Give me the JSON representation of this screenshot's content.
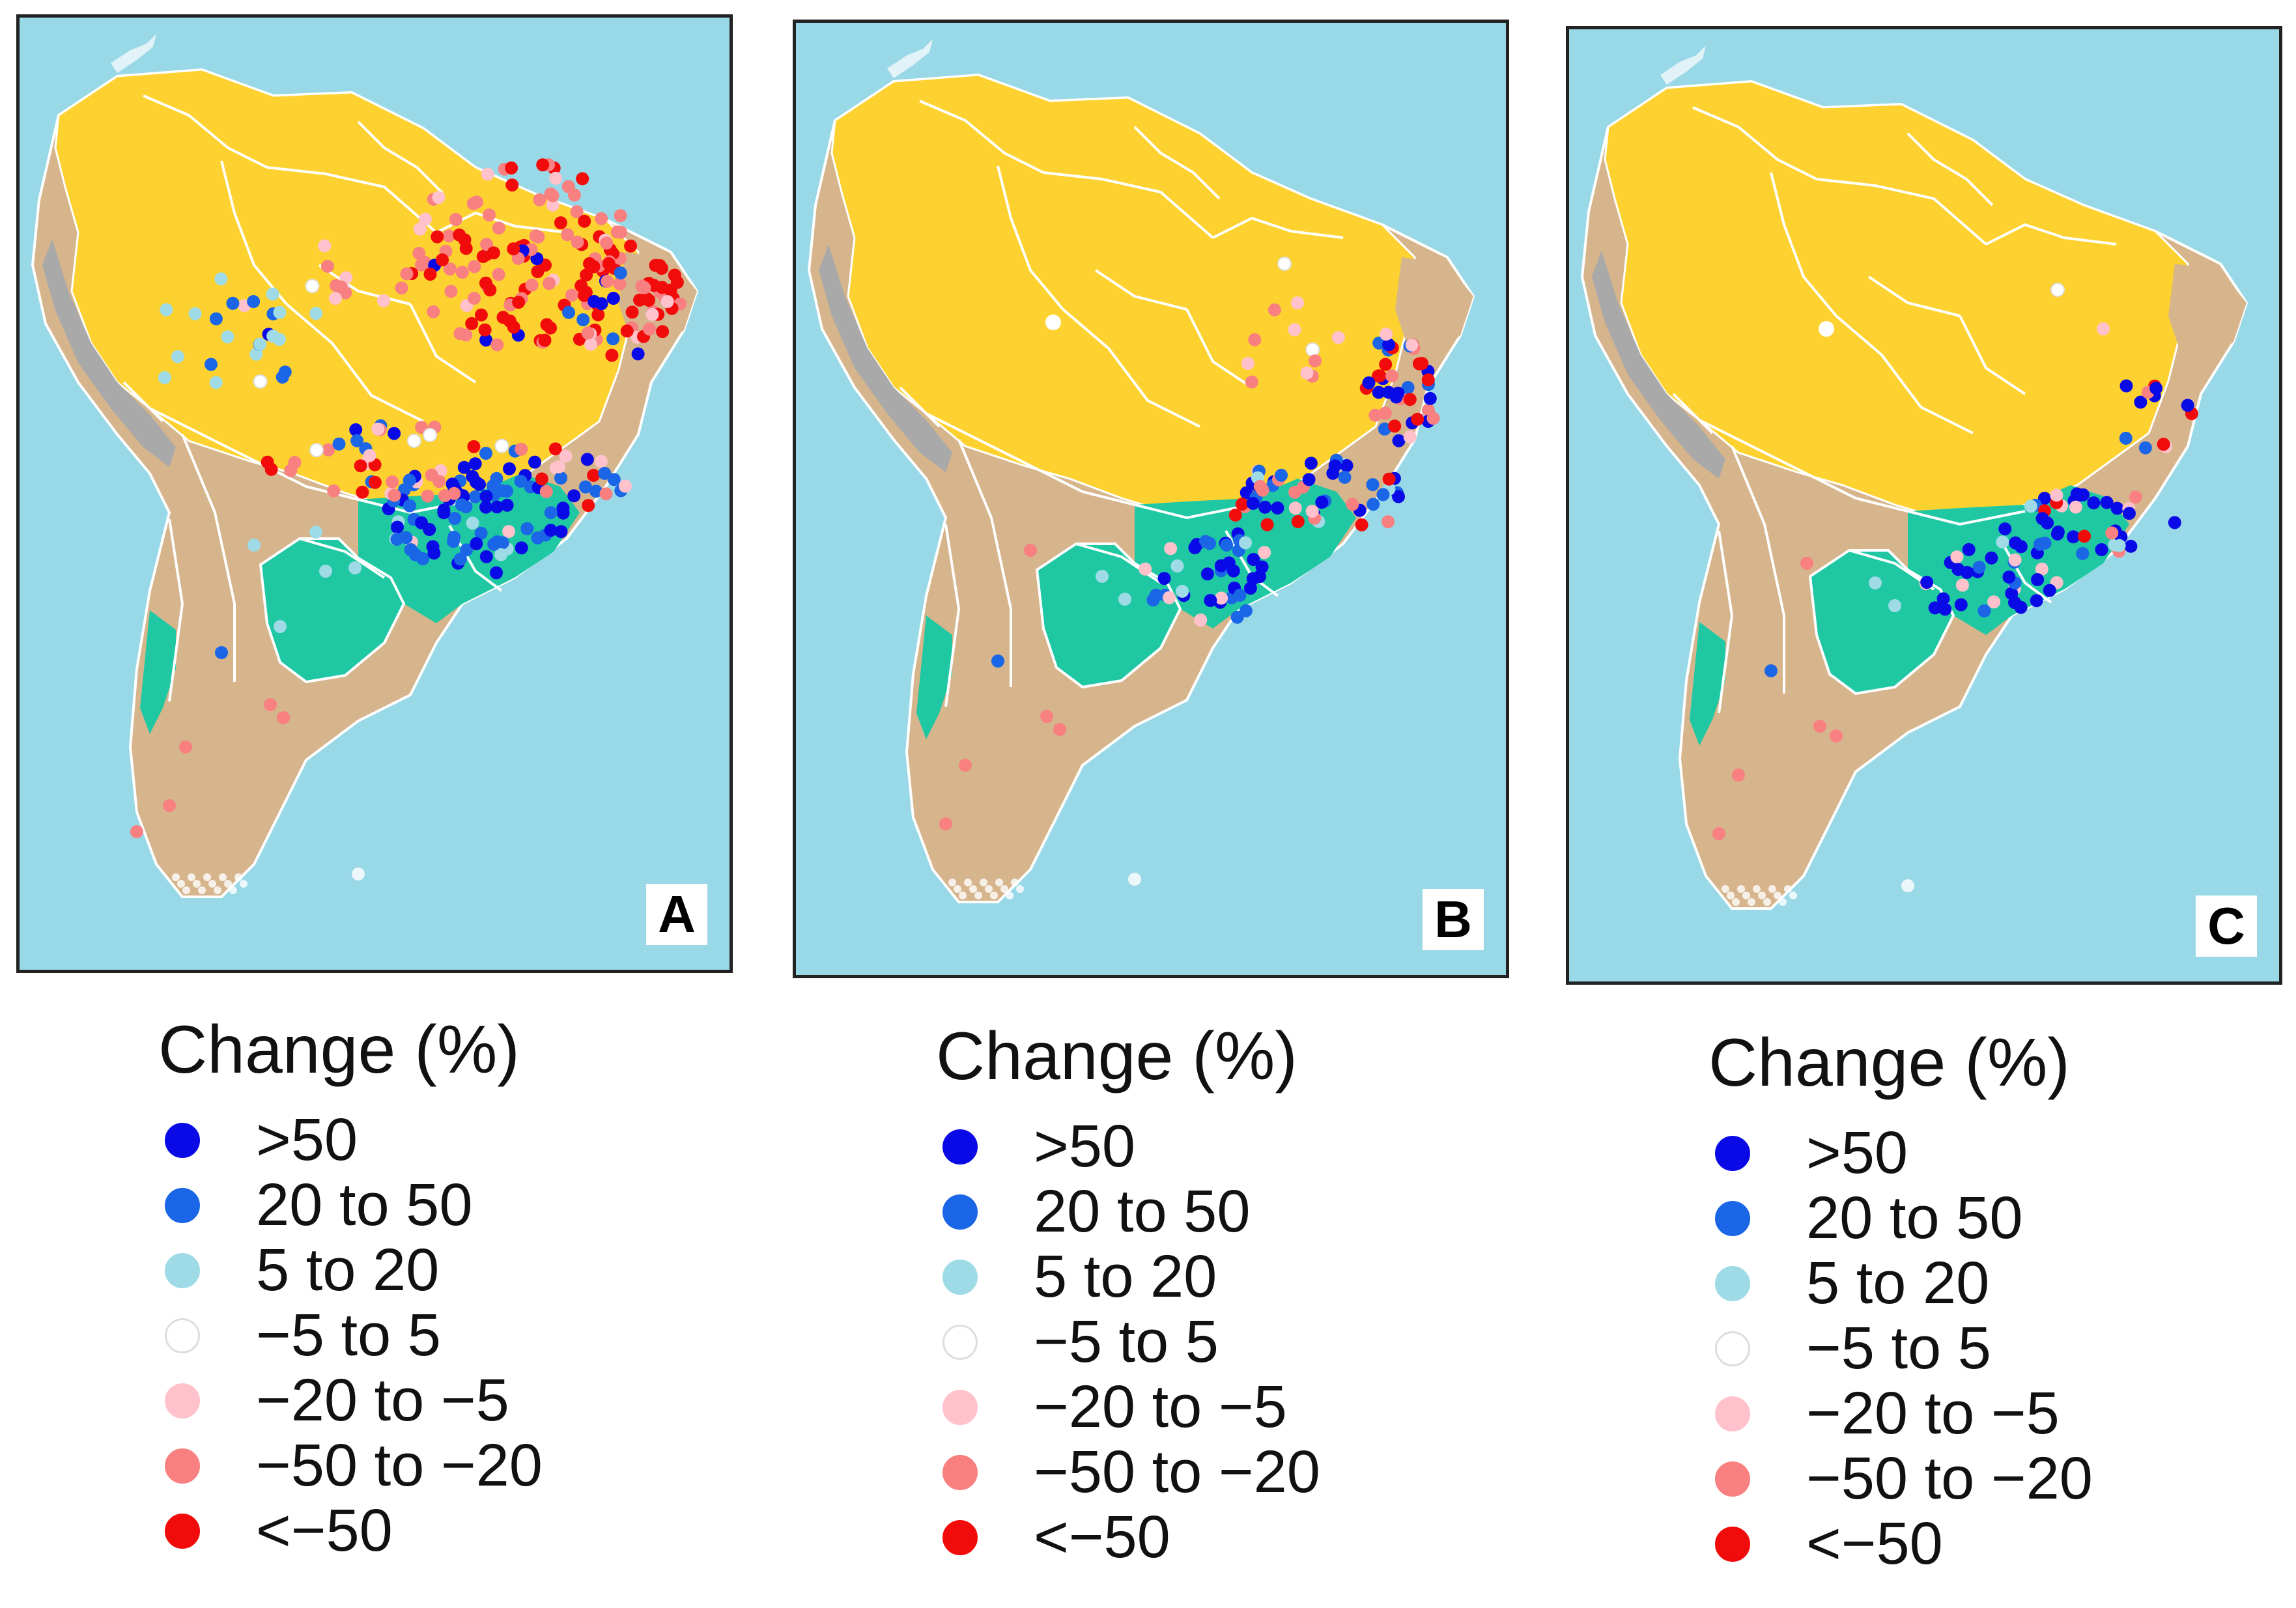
{
  "colors": {
    "ocean": "#99d8e6",
    "tropical": "#fdd230",
    "arid": "#d6b58c",
    "temperate": "#1fc8a3",
    "highland": "#a9a9a9",
    "border": "#ffffff"
  },
  "legend": {
    "title": "Change (%)",
    "items": [
      {
        "label": ">50",
        "color": "#0a0ae6"
      },
      {
        "label": "20 to 50",
        "color": "#1a66e6"
      },
      {
        "label": "5 to 20",
        "color": "#9fdbe6"
      },
      {
        "label": "−5 to 5",
        "color": "#ffffff"
      },
      {
        "label": "−20 to −5",
        "color": "#ffc2cc"
      },
      {
        "label": "−50 to −20",
        "color": "#f88080"
      },
      {
        "label": "<−50",
        "color": "#f20b0b"
      }
    ]
  },
  "panels": [
    {
      "label": "A"
    },
    {
      "label": "B"
    },
    {
      "label": "C"
    }
  ]
}
